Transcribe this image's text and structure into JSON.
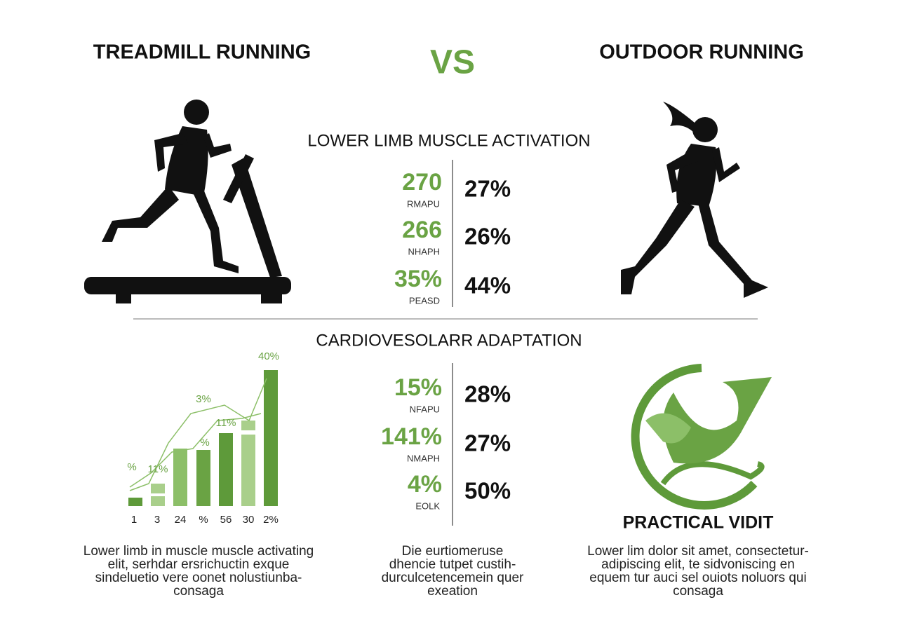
{
  "header": {
    "left_title": "TREADMILL RUNNING",
    "vs": "VS",
    "right_title": "OUTDOOR RUNNING"
  },
  "sections": [
    {
      "title": "LOWER LIMB MUSCLE ACTIVATION",
      "rows": [
        {
          "left_value": "270",
          "left_label": "RMAPU",
          "right_value": "27%"
        },
        {
          "left_value": "266",
          "left_label": "NHAPH",
          "right_value": "26%"
        },
        {
          "left_value": "35%",
          "left_label": "PEASD",
          "right_value": "44%"
        }
      ]
    },
    {
      "title": "CARDIOVESOLARR ADAPTATION",
      "rows": [
        {
          "left_value": "15%",
          "left_label": "NFAPU",
          "right_value": "28%"
        },
        {
          "left_value": "141%",
          "left_label": "NMAPH",
          "right_value": "27%"
        },
        {
          "left_value": "4%",
          "left_label": "EOLK",
          "right_value": "50%"
        }
      ]
    }
  ],
  "mini_chart": {
    "bar_labels": [
      "%",
      "11%",
      "3%",
      "%",
      "11%",
      "40%"
    ],
    "x_labels": [
      "1",
      "3",
      "24",
      "%",
      "56",
      "30",
      "2%"
    ]
  },
  "practical_title": "PRACTICAL VIDIT",
  "paragraphs": [
    {
      "lines": [
        "Lower limb in muscle muscle activating",
        "elit, serhdar ersrichuctin exque",
        "sindeluetio vere oonet nolustiunba-",
        "consaga"
      ]
    },
    {
      "lines": [
        "Die eurtiomeruse",
        "dhencie tutpet custih-",
        "durculcetencemein quer",
        "exeation"
      ]
    },
    {
      "lines": [
        "Lower lim dolor sit amet, consectetur-",
        "adipiscing elit, te sidvoniscing en",
        "equem tur auci sel ouiots noluors qui",
        "consaga"
      ]
    }
  ]
}
